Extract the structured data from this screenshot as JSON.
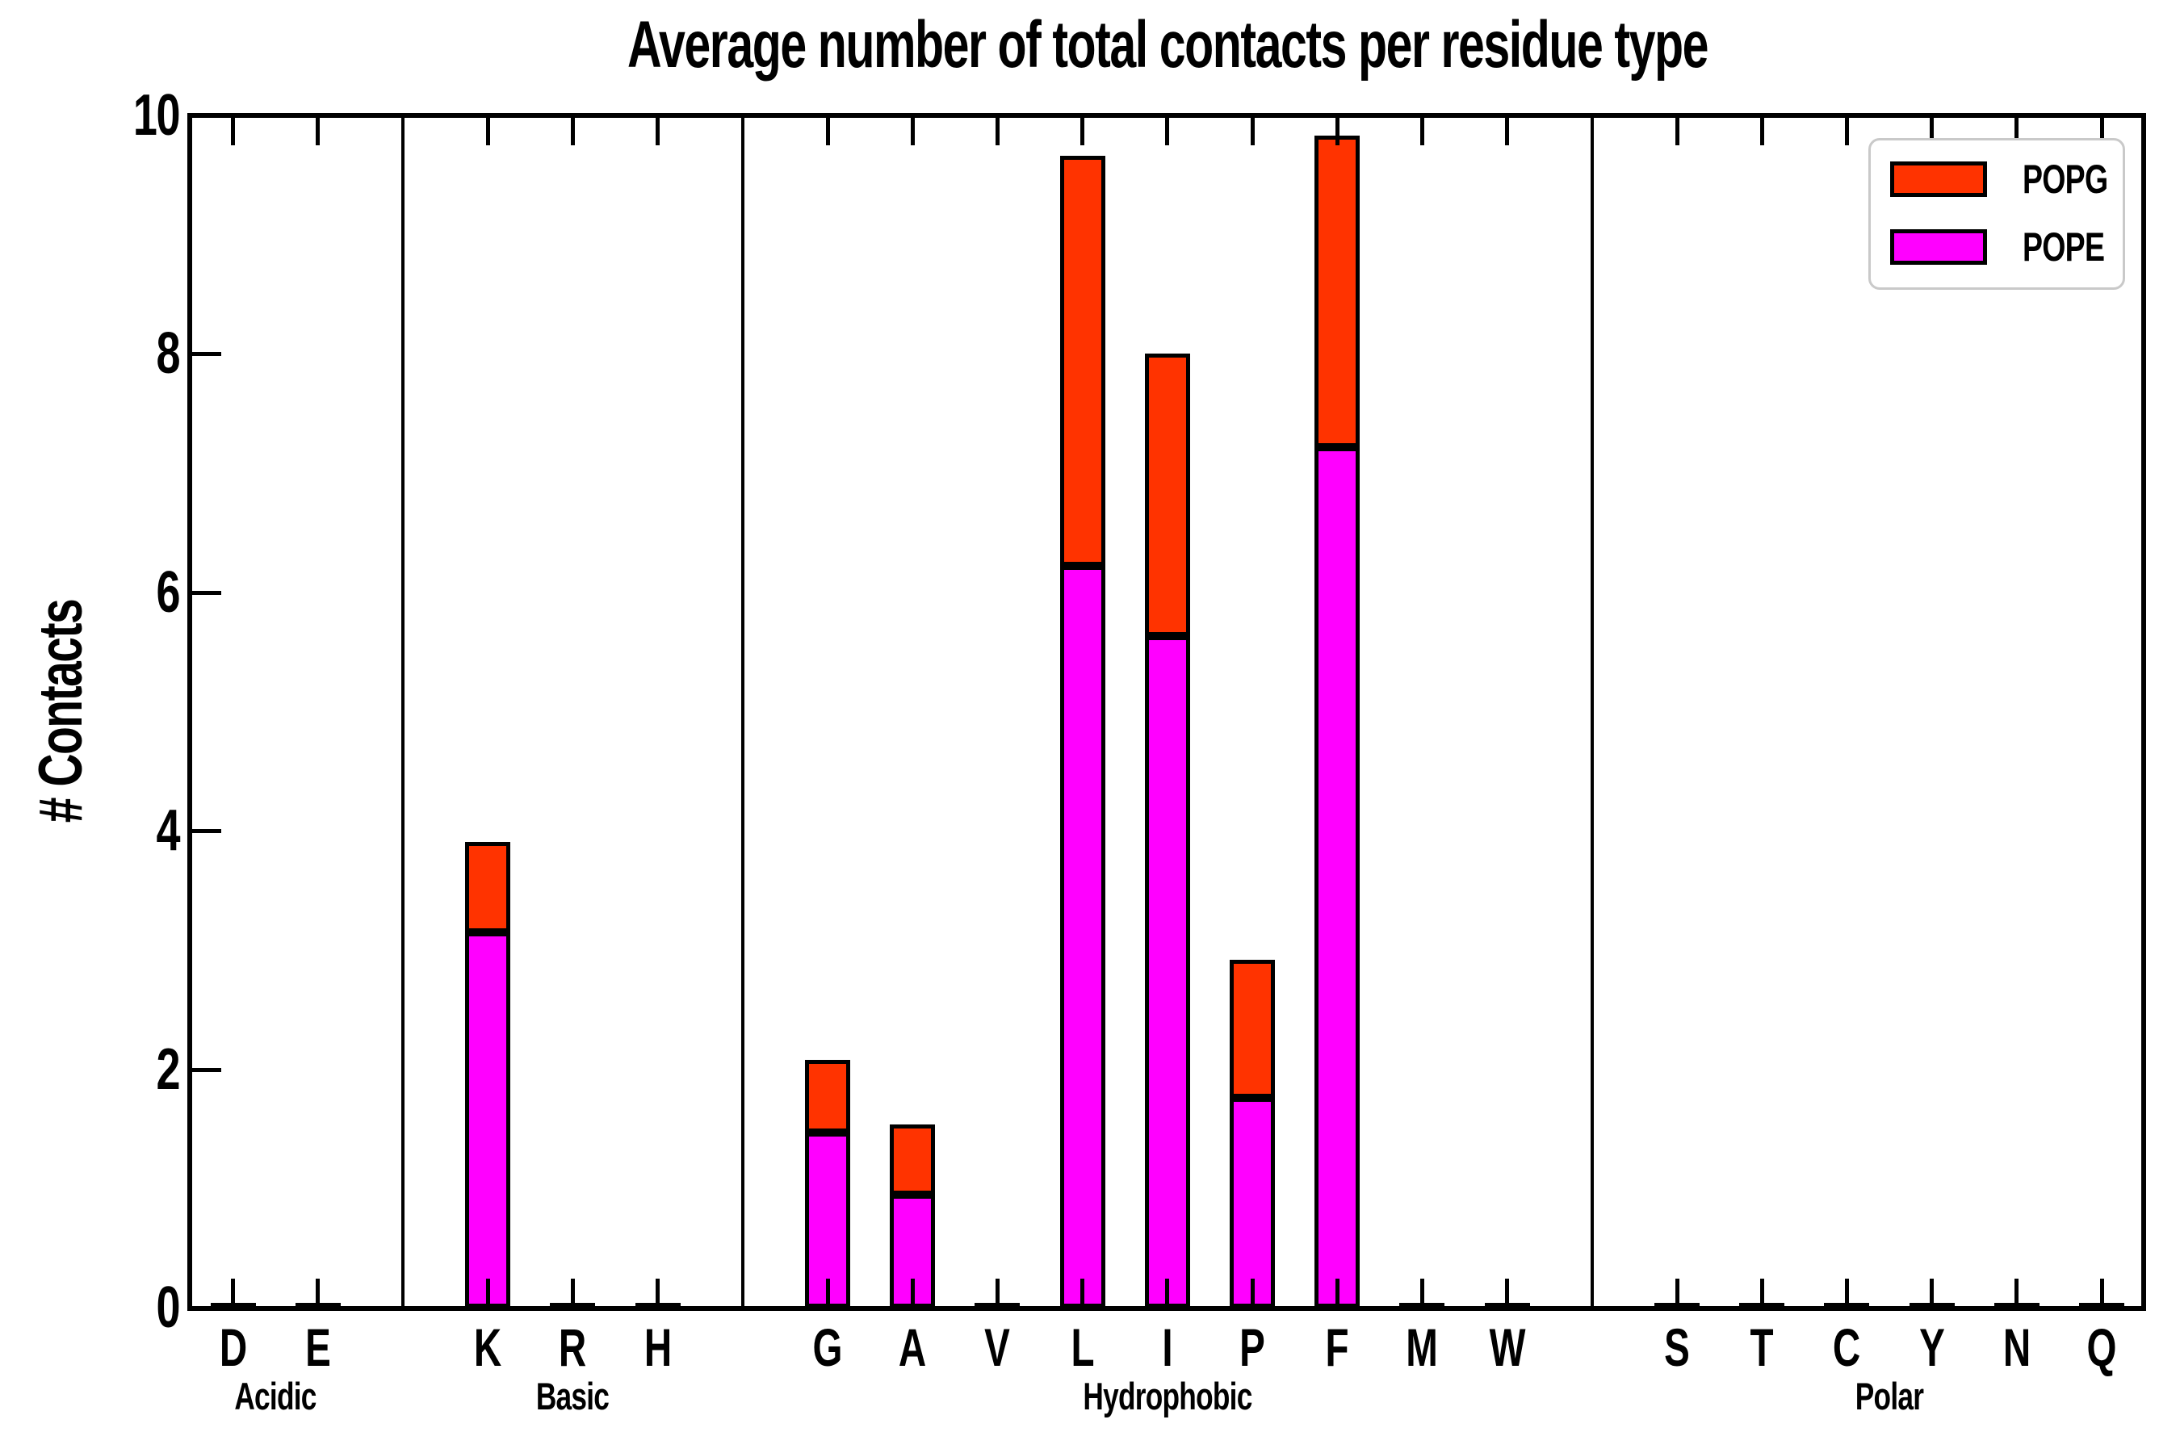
{
  "figure": {
    "title": "Average number of total contacts per residue type",
    "ylabel": "# Contacts"
  },
  "legend": {
    "items": [
      {
        "label": "POPG",
        "color": "#ff3300"
      },
      {
        "label": "POPE",
        "color": "#ff00ff"
      }
    ]
  },
  "chart_data": {
    "type": "bar",
    "stacked": true,
    "title": "Average number of total contacts per residue type",
    "xlabel": "",
    "ylabel": "# Contacts",
    "ylim": [
      0,
      10
    ],
    "yticks": [
      0,
      2,
      4,
      6,
      8,
      10
    ],
    "grid": false,
    "legend_position": "upper right",
    "bar_edge_color": "#000000",
    "categories": [
      "D",
      "E",
      "K",
      "R",
      "H",
      "G",
      "A",
      "V",
      "L",
      "I",
      "P",
      "F",
      "M",
      "W",
      "S",
      "T",
      "C",
      "Y",
      "N",
      "Q"
    ],
    "groups": [
      {
        "label": "Acidic",
        "categories": [
          "D",
          "E"
        ]
      },
      {
        "label": "Basic",
        "categories": [
          "K",
          "R",
          "H"
        ]
      },
      {
        "label": "Hydrophobic",
        "categories": [
          "G",
          "A",
          "V",
          "L",
          "I",
          "P",
          "F",
          "M",
          "W"
        ]
      },
      {
        "label": "Polar",
        "categories": [
          "S",
          "T",
          "C",
          "Y",
          "N",
          "Q"
        ]
      }
    ],
    "series": [
      {
        "name": "POPE",
        "color": "#ff00ff",
        "values": [
          0.02,
          0.02,
          3.15,
          0.02,
          0.02,
          1.47,
          0.95,
          0.02,
          6.22,
          5.63,
          1.76,
          7.22,
          0.02,
          0.02,
          0.02,
          0.02,
          0.02,
          0.02,
          0.02,
          0.02
        ]
      },
      {
        "name": "POPG",
        "color": "#ff3300",
        "values": [
          0.02,
          0.02,
          0.76,
          0.02,
          0.02,
          0.61,
          0.59,
          0.02,
          3.44,
          2.37,
          1.16,
          2.61,
          0.02,
          0.02,
          0.02,
          0.02,
          0.02,
          0.02,
          0.02,
          0.02
        ]
      }
    ]
  }
}
